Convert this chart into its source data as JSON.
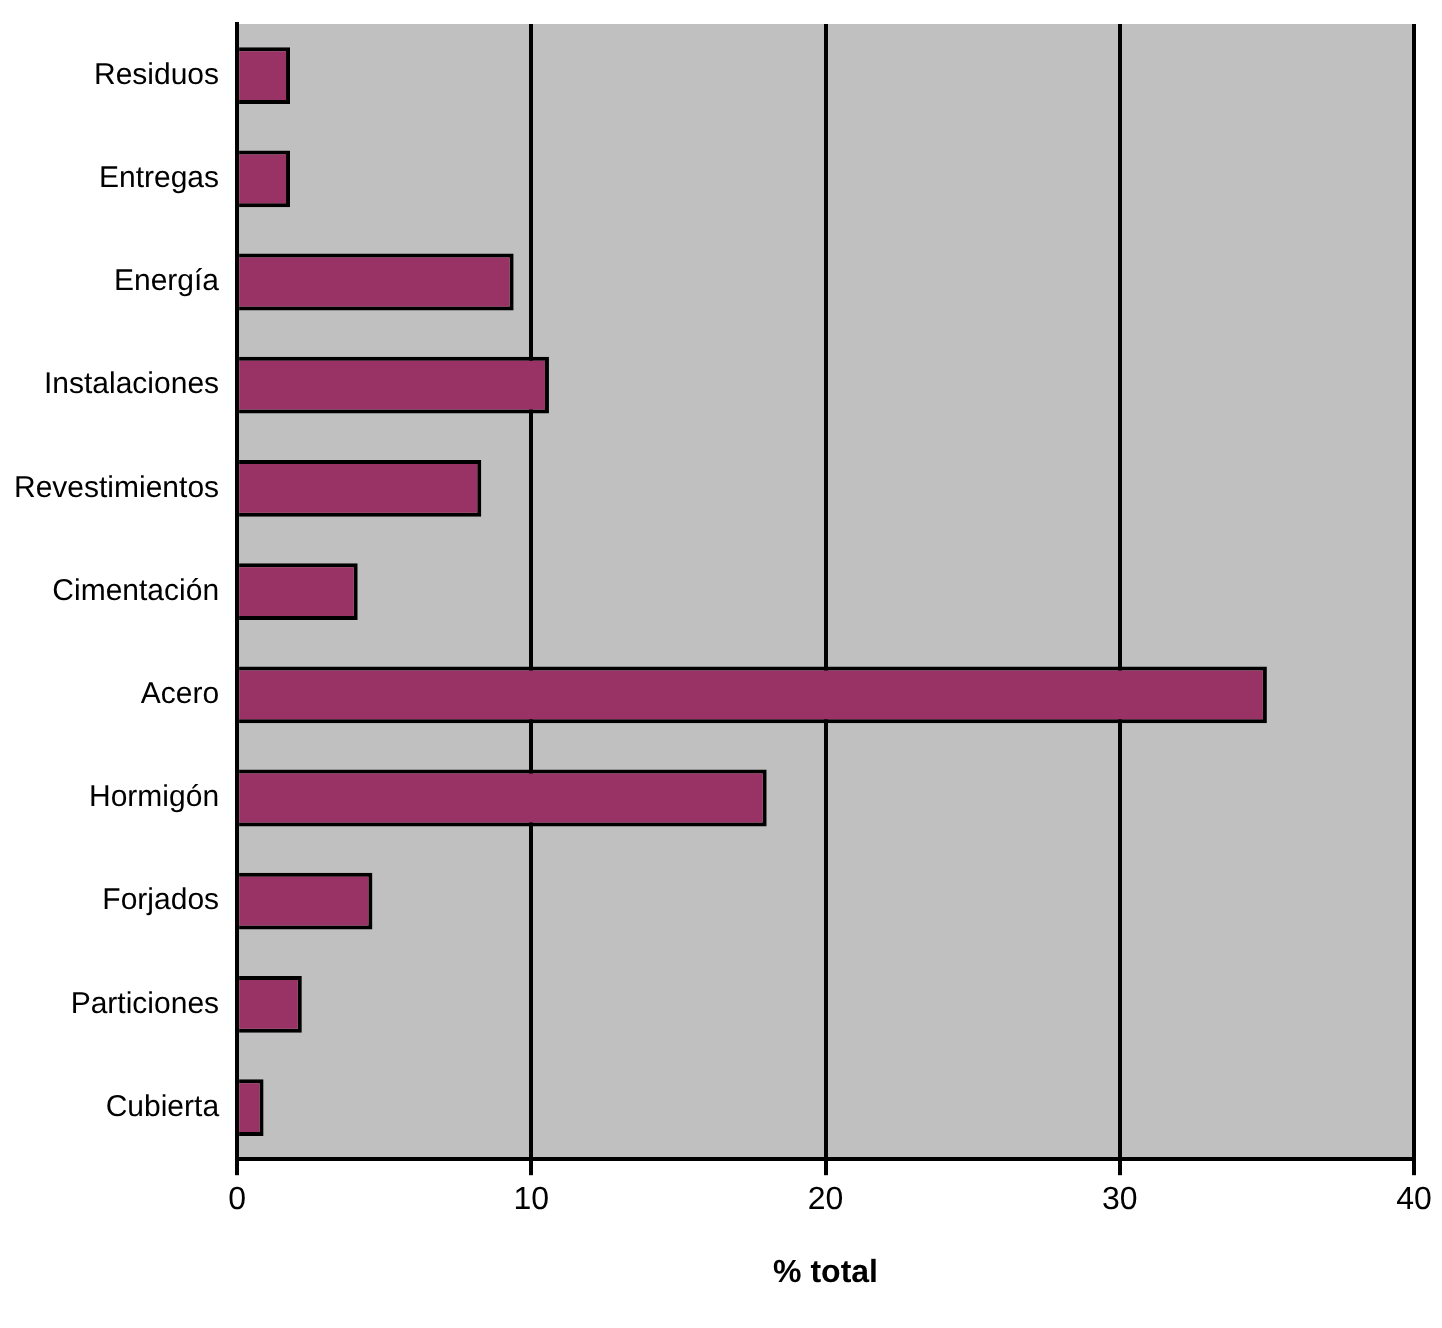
{
  "chart_data": {
    "type": "bar",
    "orientation": "horizontal",
    "xlabel": "% total",
    "categories": [
      "Residuos",
      "Entregas",
      "Energía",
      "Instalaciones",
      "Revestimientos",
      "Cimentación",
      "Acero",
      "Hormigón",
      "Forjados",
      "Particiones",
      "Cubierta"
    ],
    "values": [
      1.8,
      1.8,
      9.4,
      10.6,
      8.3,
      4.1,
      35,
      18,
      4.6,
      2.2,
      0.9
    ],
    "color": "#993366",
    "xlim": [
      0,
      40
    ],
    "xticks": [
      0,
      10,
      20,
      30,
      40
    ],
    "grid": "x",
    "legend": false
  }
}
